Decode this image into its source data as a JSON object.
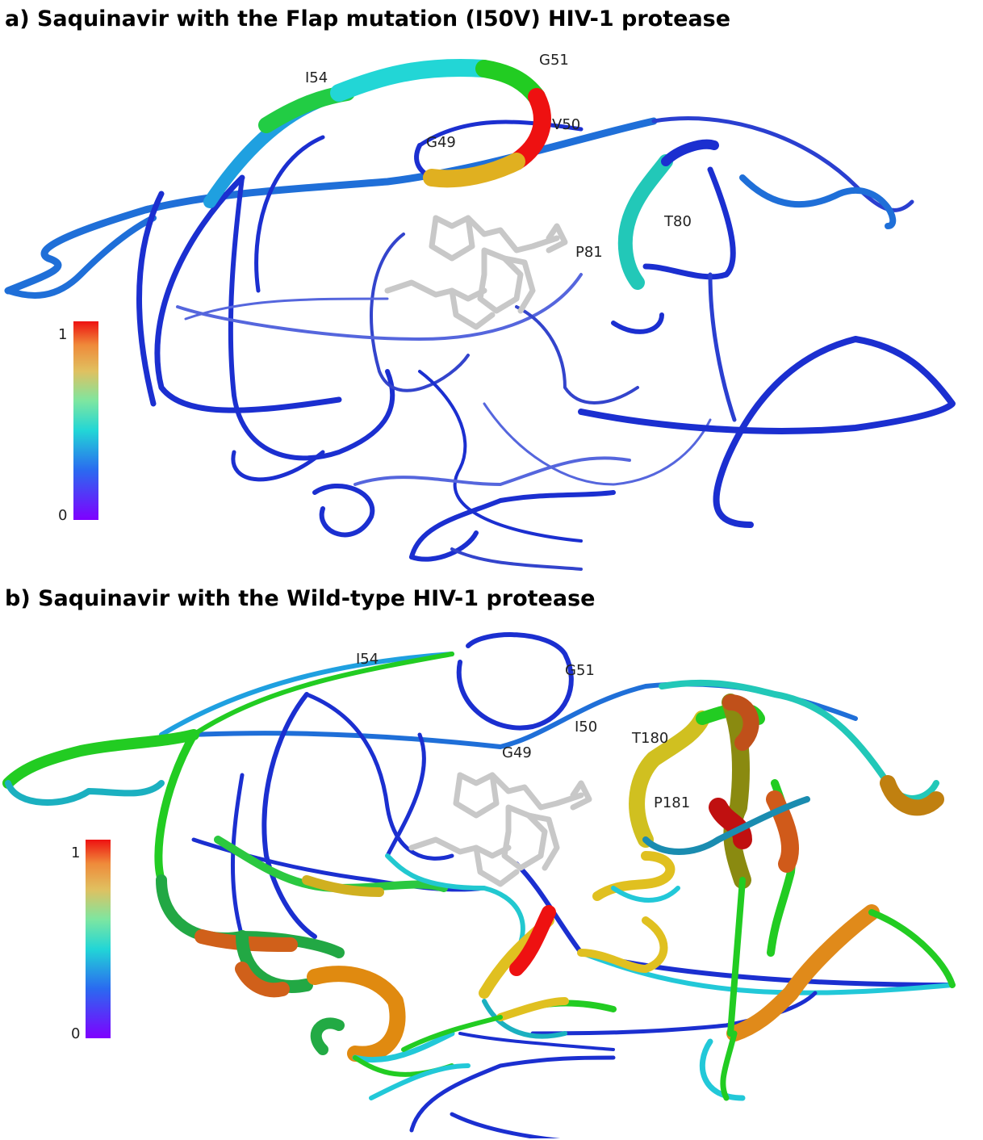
{
  "panel_a": {
    "title": "a) Saquinavir with the Flap mutation (I50V) HIV-1 protease",
    "residues": {
      "i54": "I54",
      "g51": "G51",
      "v50": "V50",
      "g49": "G49",
      "t80": "T80",
      "p81": "P81"
    },
    "colorbar": {
      "max": "1",
      "min": "0"
    }
  },
  "panel_b": {
    "title": "b) Saquinavir with the Wild-type HIV-1 protease",
    "residues": {
      "i54": "I54",
      "g51": "G51",
      "i50": "I50",
      "g49": "G49",
      "t180": "T180",
      "p181": "P181"
    },
    "colorbar": {
      "max": "1",
      "min": "0"
    }
  },
  "colors": {
    "low": "#7f00ff",
    "blue": "#1b2fd0",
    "cyan": "#22d6d6",
    "green": "#22cc22",
    "yellow": "#e0c020",
    "orange": "#e07a1a",
    "red": "#ee1111",
    "ligand": "#c8c8c8"
  }
}
